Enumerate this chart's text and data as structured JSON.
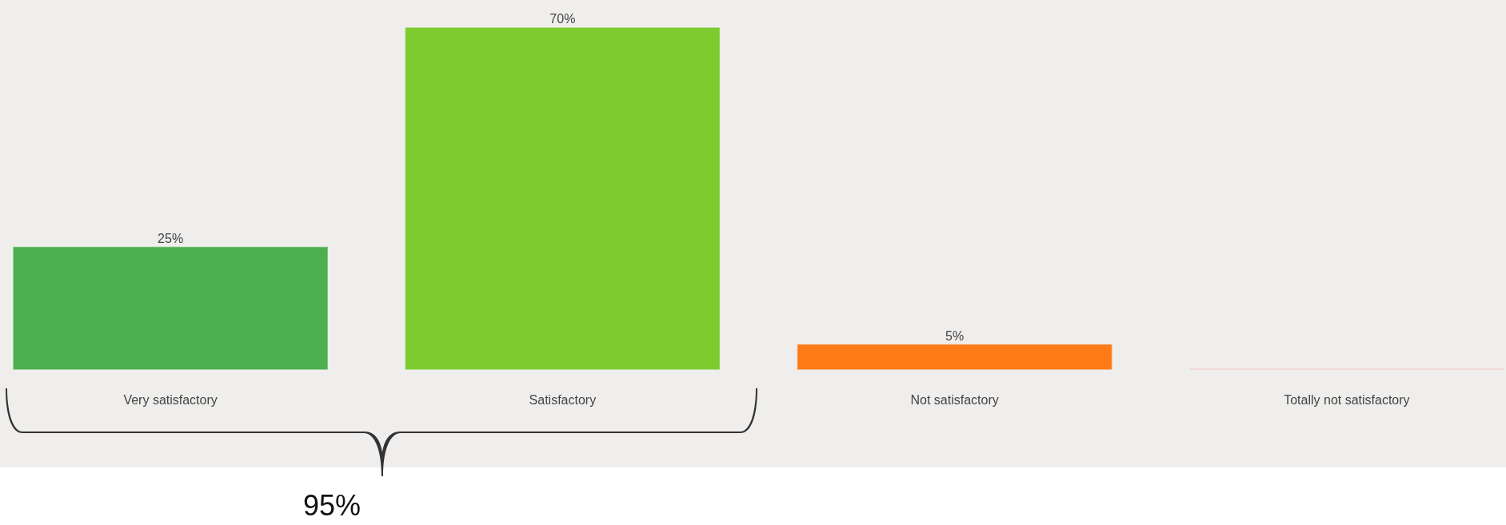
{
  "chart_data": {
    "type": "bar",
    "categories": [
      "Very satisfactory",
      "Satisfactory",
      "Not satisfactory",
      "Totally not satisfactory"
    ],
    "values": [
      25,
      70,
      5,
      0
    ],
    "colors": [
      "#4caf50",
      "#7ccc30",
      "#fd7a14",
      "#f4bcbc"
    ],
    "value_labels": [
      "25%",
      "70%",
      "5%",
      null
    ],
    "annotations": [
      "95%"
    ]
  }
}
